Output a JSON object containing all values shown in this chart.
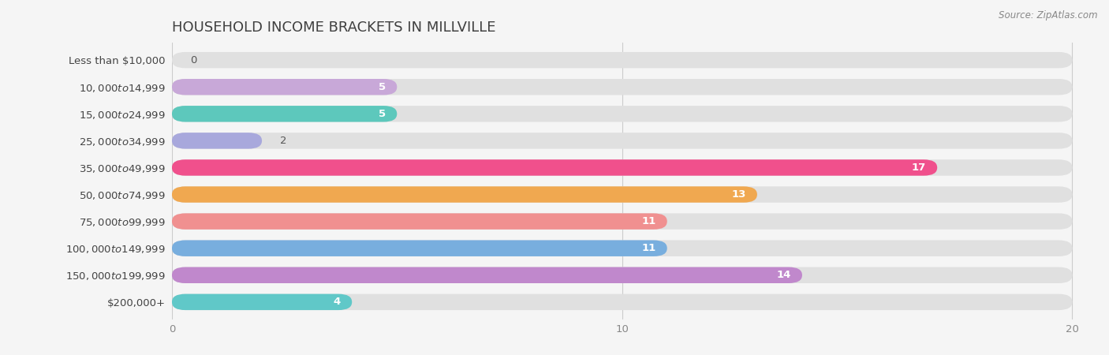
{
  "title": "HOUSEHOLD INCOME BRACKETS IN MILLVILLE",
  "source": "Source: ZipAtlas.com",
  "categories": [
    "Less than $10,000",
    "$10,000 to $14,999",
    "$15,000 to $24,999",
    "$25,000 to $34,999",
    "$35,000 to $49,999",
    "$50,000 to $74,999",
    "$75,000 to $99,999",
    "$100,000 to $149,999",
    "$150,000 to $199,999",
    "$200,000+"
  ],
  "values": [
    0,
    5,
    5,
    2,
    17,
    13,
    11,
    11,
    14,
    4
  ],
  "bar_colors": [
    "#a8c8ea",
    "#c8a8d8",
    "#5dc8bc",
    "#a8a8dc",
    "#f0508c",
    "#f0a850",
    "#f09090",
    "#78aede",
    "#c088cc",
    "#60c8c8"
  ],
  "xlim": [
    0,
    20
  ],
  "xticks": [
    0,
    10,
    20
  ],
  "background_color": "#f5f5f5",
  "bar_background_color": "#e0e0e0",
  "title_fontsize": 13,
  "label_fontsize": 9.5,
  "value_fontsize": 9.5,
  "bar_height": 0.6
}
